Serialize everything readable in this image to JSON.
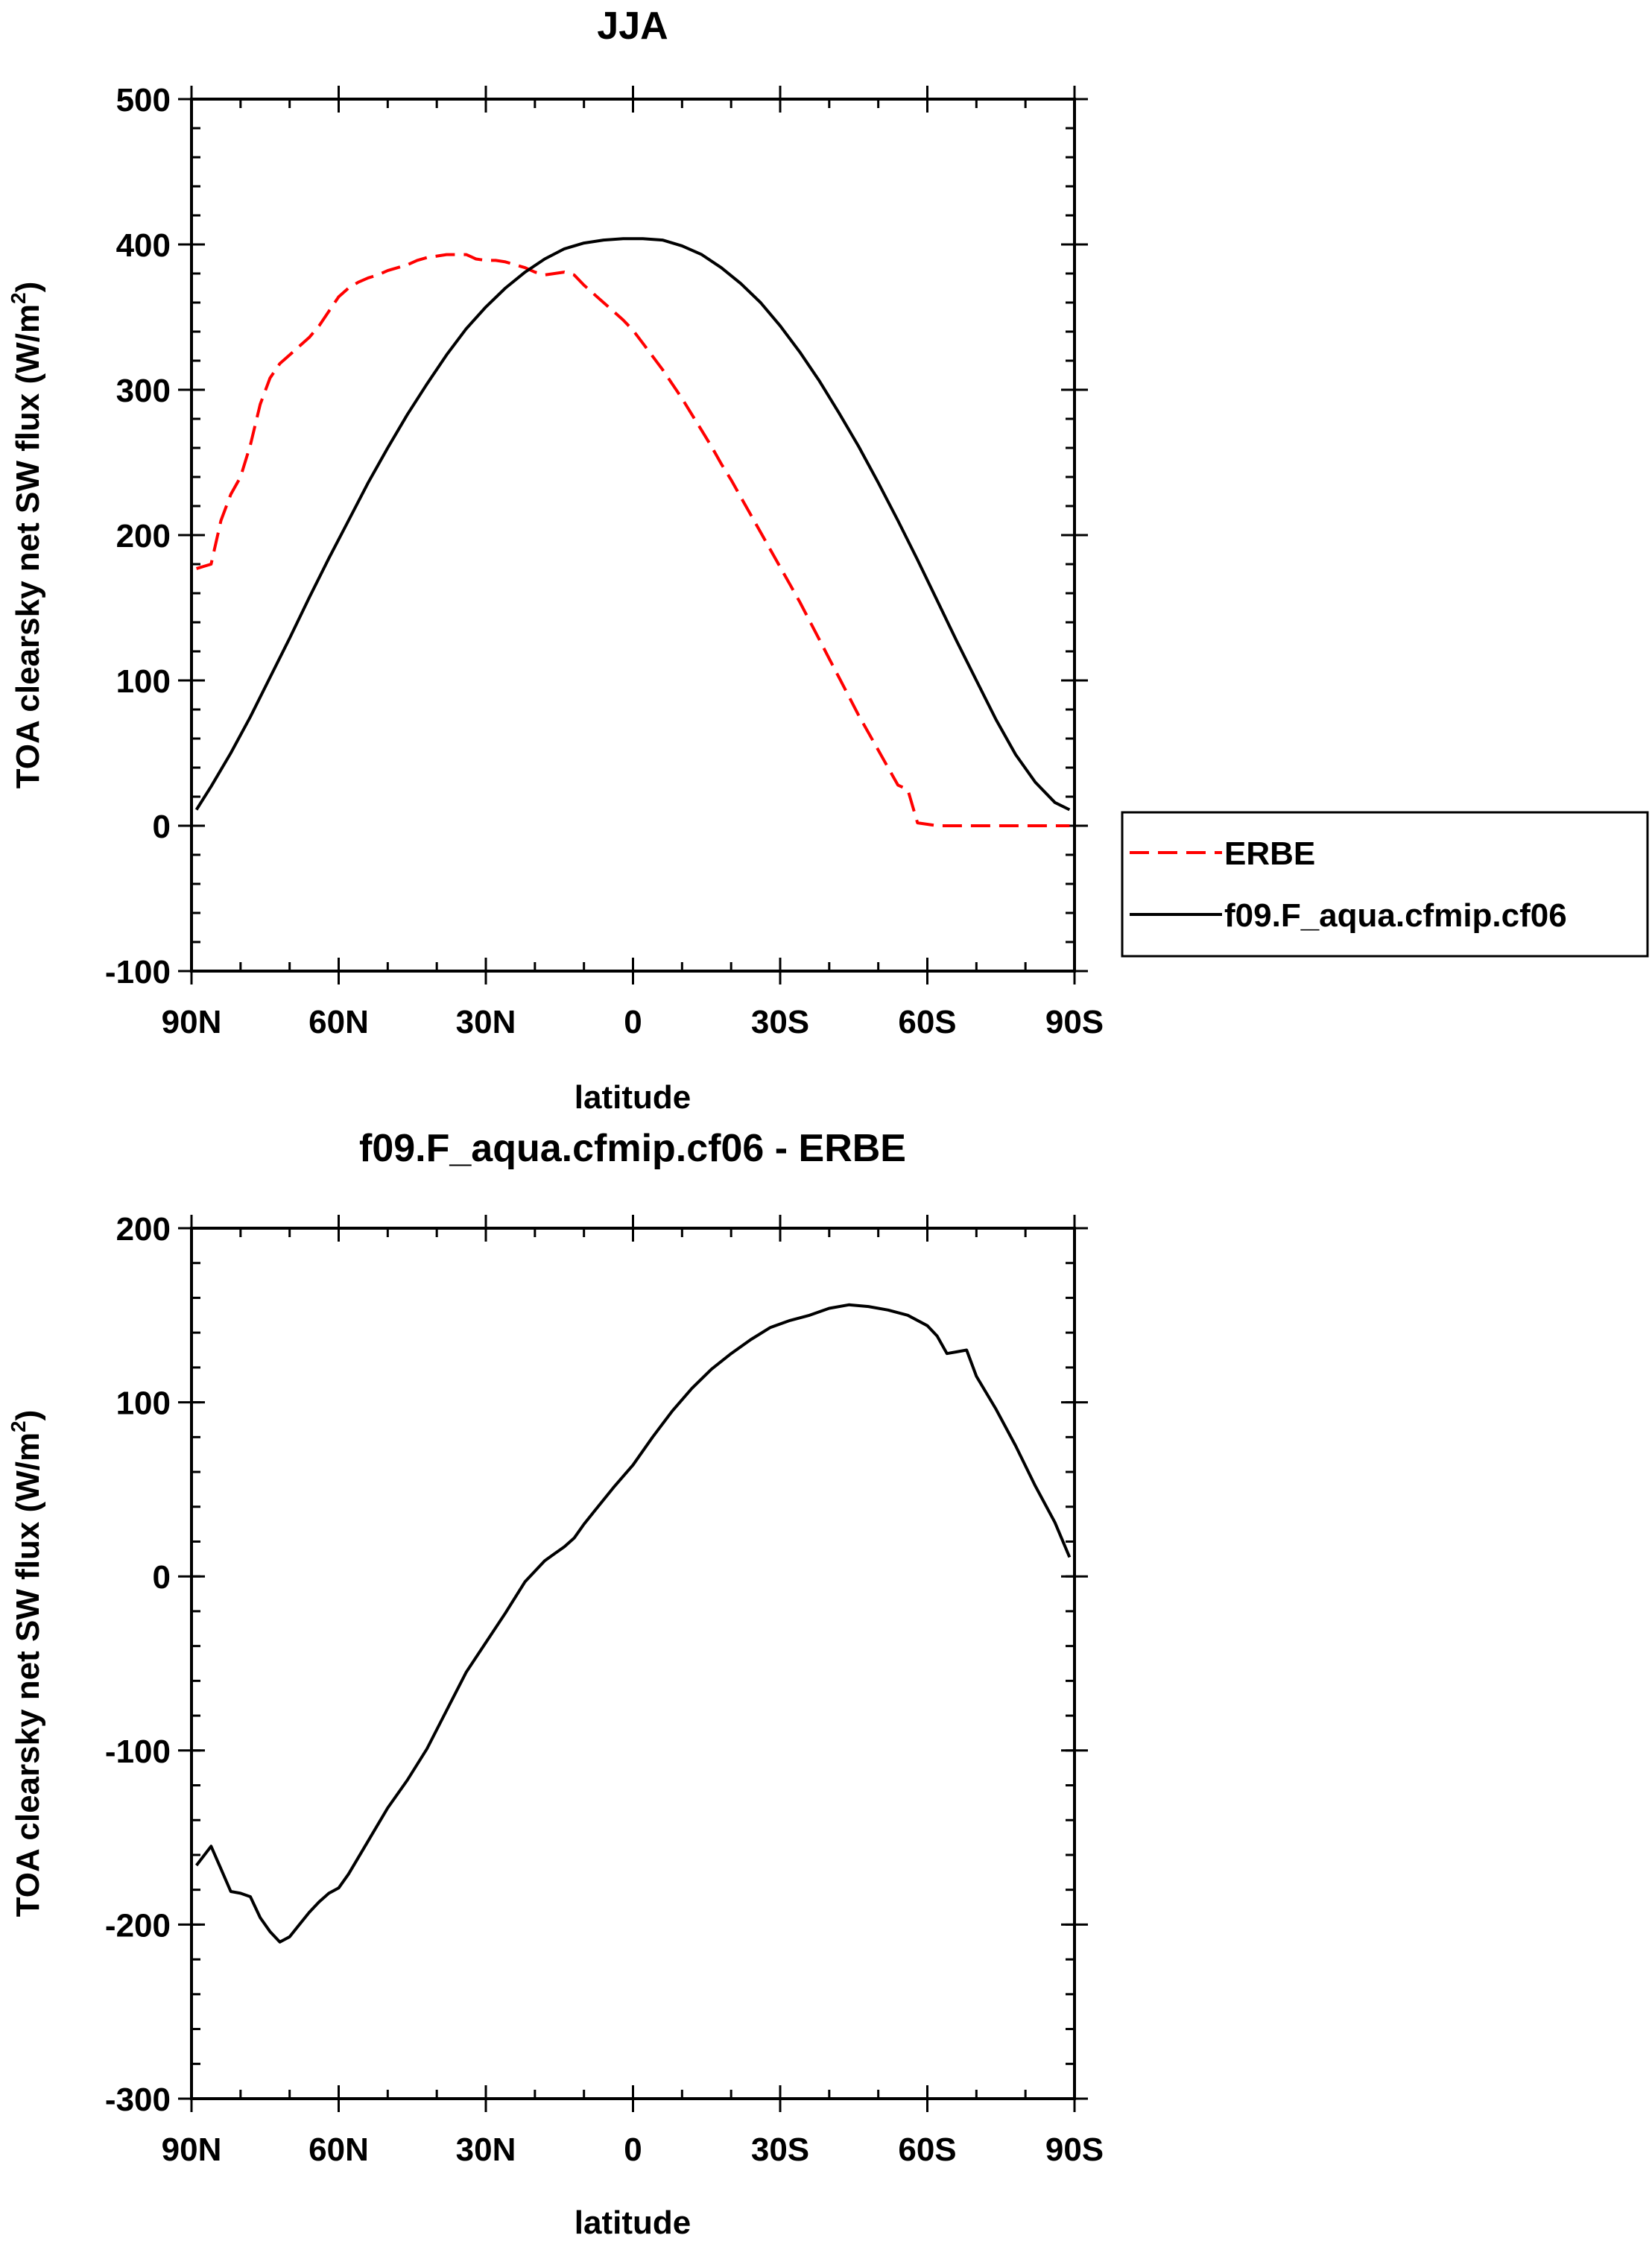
{
  "chart_data": [
    {
      "type": "line",
      "title": "JJA",
      "xlabel": "latitude",
      "ylabel": "TOA clearsky net SW flux (W/m",
      "ylabel_sup": "2",
      "ylabel_close": ")",
      "xlim": [
        90,
        -90
      ],
      "ylim": [
        -100,
        500
      ],
      "x_ticks": [
        90,
        60,
        30,
        0,
        -30,
        -60,
        -90
      ],
      "x_tick_labels": [
        "90N",
        "60N",
        "30N",
        "0",
        "30S",
        "60S",
        "90S"
      ],
      "y_ticks": [
        -100,
        0,
        100,
        200,
        300,
        400,
        500
      ],
      "y_tick_labels": [
        "-100",
        "0",
        "100",
        "200",
        "300",
        "400",
        "500"
      ],
      "legend_position": "outside-right",
      "series": [
        {
          "name": "ERBE",
          "color": "#ff0000",
          "dash": "dashed",
          "x": [
            89,
            86,
            84,
            82,
            80,
            78,
            76,
            74,
            72,
            70,
            68,
            66,
            64,
            62,
            60,
            58,
            56,
            54,
            52,
            50,
            48,
            46,
            44,
            42,
            40,
            38,
            36,
            34,
            32,
            30,
            28,
            26,
            24,
            22,
            20,
            18,
            16,
            14,
            12,
            10,
            8,
            6,
            4,
            2,
            0,
            -2,
            -4,
            -6,
            -8,
            -10,
            -12,
            -14,
            -16,
            -18,
            -20,
            -22,
            -24,
            -26,
            -28,
            -30,
            -32,
            -34,
            -36,
            -38,
            -40,
            -42,
            -44,
            -46,
            -48,
            -50,
            -52,
            -54,
            -56,
            -58,
            -60,
            -62,
            -64,
            -66,
            -68,
            -70,
            -72,
            -74,
            -76,
            -78,
            -80,
            -82,
            -84,
            -86,
            -89
          ],
          "values": [
            177,
            180,
            210,
            228,
            240,
            262,
            290,
            308,
            318,
            324,
            330,
            336,
            344,
            354,
            364,
            370,
            374,
            377,
            379,
            382,
            384,
            386,
            389,
            391,
            392,
            393,
            393,
            393,
            390,
            389,
            389,
            388,
            386,
            384,
            381,
            379,
            380,
            381,
            379,
            372,
            366,
            360,
            354,
            348,
            341,
            332,
            323,
            314,
            304,
            294,
            283,
            272,
            261,
            249,
            238,
            226,
            214,
            202,
            190,
            178,
            166,
            154,
            141,
            128,
            115,
            102,
            89,
            76,
            64,
            52,
            40,
            28,
            25,
            2,
            1,
            0,
            0,
            0,
            0,
            0,
            0,
            0,
            0,
            0,
            0,
            0,
            0,
            0,
            0
          ]
        },
        {
          "name": "f09.F_aqua.cfmip.cf06",
          "color": "#000000",
          "dash": "solid",
          "x": [
            89,
            86,
            82,
            78,
            74,
            70,
            66,
            62,
            58,
            54,
            50,
            46,
            42,
            38,
            34,
            30,
            26,
            22,
            18,
            14,
            10,
            6,
            2,
            0,
            -2,
            -6,
            -10,
            -14,
            -18,
            -22,
            -26,
            -30,
            -34,
            -38,
            -42,
            -46,
            -50,
            -54,
            -58,
            -62,
            -66,
            -70,
            -74,
            -78,
            -82,
            -86,
            -89
          ],
          "values": [
            11,
            27,
            50,
            75,
            102,
            129,
            157,
            184,
            210,
            236,
            260,
            283,
            304,
            324,
            342,
            357,
            370,
            381,
            390,
            397,
            401,
            403,
            404,
            404,
            404,
            403,
            399,
            393,
            384,
            373,
            360,
            344,
            326,
            306,
            284,
            261,
            236,
            210,
            183,
            155,
            127,
            100,
            73,
            49,
            30,
            16,
            11
          ]
        }
      ]
    },
    {
      "type": "line",
      "title": "f09.F_aqua.cfmip.cf06 - ERBE",
      "xlabel": "latitude",
      "ylabel": "TOA clearsky net SW flux (W/m",
      "ylabel_sup": "2",
      "ylabel_close": ")",
      "xlim": [
        90,
        -90
      ],
      "ylim": [
        -300,
        200
      ],
      "x_ticks": [
        90,
        60,
        30,
        0,
        -30,
        -60,
        -90
      ],
      "x_tick_labels": [
        "90N",
        "60N",
        "30N",
        "0",
        "30S",
        "60S",
        "90S"
      ],
      "y_ticks": [
        -300,
        -200,
        -100,
        0,
        100,
        200
      ],
      "y_tick_labels": [
        "-300",
        "-200",
        "-100",
        "0",
        "100",
        "200"
      ],
      "series": [
        {
          "name": "f09.F_aqua.cfmip.cf06 - ERBE",
          "color": "#000000",
          "dash": "solid",
          "x": [
            89,
            86,
            84,
            82,
            80,
            78,
            76,
            74,
            72,
            70,
            68,
            66,
            64,
            62,
            60,
            58,
            54,
            50,
            46,
            42,
            38,
            34,
            30,
            26,
            22,
            18,
            16,
            14,
            12,
            10,
            8,
            4,
            0,
            -4,
            -8,
            -12,
            -16,
            -20,
            -24,
            -28,
            -32,
            -36,
            -40,
            -44,
            -48,
            -52,
            -56,
            -60,
            -62,
            -64,
            -66,
            -68,
            -70,
            -74,
            -78,
            -82,
            -86,
            -89
          ],
          "values": [
            -166,
            -155,
            -168,
            -181,
            -182,
            -184,
            -196,
            -204,
            -210,
            -207,
            -200,
            -193,
            -187,
            -182,
            -179,
            -171,
            -152,
            -133,
            -117,
            -99,
            -77,
            -55,
            -38,
            -21,
            -3,
            9,
            13,
            17,
            22,
            30,
            37,
            51,
            64,
            80,
            95,
            108,
            119,
            128,
            136,
            143,
            147,
            150,
            154,
            156,
            155,
            153,
            150,
            144,
            138,
            128,
            129,
            130,
            115,
            96,
            75,
            52,
            31,
            11
          ]
        }
      ]
    }
  ]
}
